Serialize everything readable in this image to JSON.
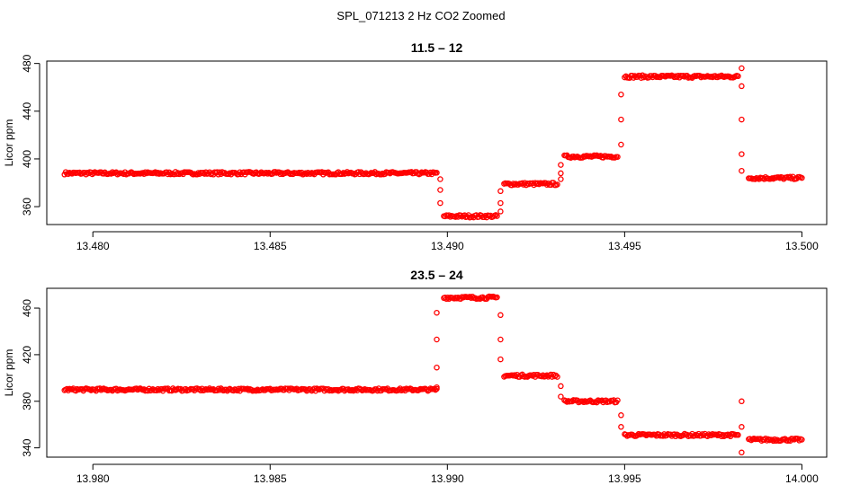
{
  "suptitle": "SPL_071213  2 Hz CO2 Zoomed",
  "chart_data": [
    {
      "type": "scatter",
      "title": "11.5 – 12",
      "xlabel": "",
      "ylabel": "Licor ppm",
      "xlim": [
        13.4787,
        13.5007
      ],
      "ylim": [
        345,
        482
      ],
      "xticks": [
        13.48,
        13.485,
        13.49,
        13.495,
        13.5
      ],
      "xtick_labels": [
        "13.480",
        "13.485",
        "13.490",
        "13.495",
        "13.500"
      ],
      "yticks": [
        360,
        400,
        440,
        480
      ],
      "ytick_labels": [
        "360",
        "400",
        "440",
        "480"
      ],
      "grid": false,
      "marker": "open-circle",
      "color": "#ff0000",
      "segments": [
        {
          "x_start": 13.4792,
          "x_end": 13.4897,
          "y": 388
        },
        {
          "x_start": 13.4899,
          "x_end": 13.4914,
          "y": 352
        },
        {
          "x_start": 13.4916,
          "x_end": 13.4931,
          "y": 379
        },
        {
          "x_start": 13.4933,
          "x_end": 13.4948,
          "y": 402
        },
        {
          "x_start": 13.495,
          "x_end": 13.4982,
          "y": 469
        },
        {
          "x_start": 13.4985,
          "x_end": 13.5,
          "y": 384
        }
      ],
      "transitions": [
        {
          "x": 13.4898,
          "y": [
            383,
            374,
            363
          ]
        },
        {
          "x": 13.4915,
          "y": [
            373,
            363,
            356
          ]
        },
        {
          "x": 13.4932,
          "y": [
            383,
            388,
            395
          ]
        },
        {
          "x": 13.4949,
          "y": [
            412,
            433,
            454
          ]
        },
        {
          "x": 13.4983,
          "y": [
            476,
            461,
            433,
            404,
            390
          ]
        }
      ]
    },
    {
      "type": "scatter",
      "title": "23.5 – 24",
      "xlabel": "",
      "ylabel": "Licor ppm",
      "xlim": [
        13.9787,
        14.0007
      ],
      "ylim": [
        332,
        477
      ],
      "xticks": [
        13.98,
        13.985,
        13.99,
        13.995,
        14.0
      ],
      "xtick_labels": [
        "13.980",
        "13.985",
        "13.990",
        "13.995",
        "14.000"
      ],
      "yticks": [
        340,
        380,
        420,
        460
      ],
      "ytick_labels": [
        "340",
        "380",
        "420",
        "460"
      ],
      "grid": false,
      "marker": "open-circle",
      "color": "#ff0000",
      "segments": [
        {
          "x_start": 13.9792,
          "x_end": 13.9897,
          "y": 390
        },
        {
          "x_start": 13.9899,
          "x_end": 13.9914,
          "y": 469
        },
        {
          "x_start": 13.9916,
          "x_end": 13.9931,
          "y": 402
        },
        {
          "x_start": 13.9933,
          "x_end": 13.9948,
          "y": 380
        },
        {
          "x_start": 13.995,
          "x_end": 13.9982,
          "y": 351
        },
        {
          "x_start": 13.9985,
          "x_end": 14.0,
          "y": 347
        }
      ],
      "transitions": [
        {
          "x": 13.9897,
          "y": [
            392,
            409,
            433,
            456
          ]
        },
        {
          "x": 13.9915,
          "y": [
            454,
            433,
            416
          ]
        },
        {
          "x": 13.9932,
          "y": [
            393,
            384
          ]
        },
        {
          "x": 13.9949,
          "y": [
            368,
            358
          ]
        },
        {
          "x": 13.9983,
          "y": [
            380,
            358,
            336
          ]
        }
      ]
    }
  ]
}
